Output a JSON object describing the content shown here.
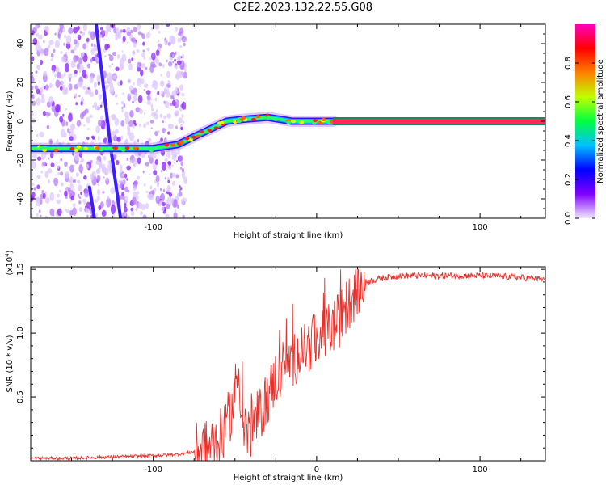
{
  "figure": {
    "title": "C2E2.2023.132.22.55.G08"
  },
  "chart_data": [
    {
      "type": "heatmap",
      "xlabel": "Height of straight line (km)",
      "ylabel": "Frequency (Hz)",
      "xlim": [
        -175,
        140
      ],
      "ylim": [
        -50,
        50
      ],
      "x_ticks": [
        -100,
        0,
        100
      ],
      "x_tick_labels": [
        "-100",
        "",
        "100"
      ],
      "y_ticks": [
        -40,
        -20,
        0,
        20,
        40
      ],
      "colorbar": {
        "label": "Normalized spectral amplitude",
        "range": [
          0,
          1
        ],
        "ticks": [
          0.0,
          0.2,
          0.4,
          0.6,
          0.8
        ],
        "tick_labels": [
          "0.0",
          "0.2",
          "0.4",
          "0.6",
          "0.8"
        ],
        "colormap": [
          "#f0e8ff",
          "#8000ff",
          "#0000ff",
          "#00c0ff",
          "#00ff40",
          "#c0ff00",
          "#ff8000",
          "#ff0000",
          "#ff00c0"
        ]
      },
      "main_track": {
        "points": [
          {
            "x": -175,
            "y": -14
          },
          {
            "x": -160,
            "y": -14
          },
          {
            "x": -140,
            "y": -14
          },
          {
            "x": -120,
            "y": -14
          },
          {
            "x": -100,
            "y": -14
          },
          {
            "x": -85,
            "y": -12
          },
          {
            "x": -75,
            "y": -8
          },
          {
            "x": -65,
            "y": -4
          },
          {
            "x": -55,
            "y": 0
          },
          {
            "x": -45,
            "y": 1
          },
          {
            "x": -30,
            "y": 2
          },
          {
            "x": -15,
            "y": 0
          },
          {
            "x": 0,
            "y": 0
          },
          {
            "x": 10,
            "y": 0
          }
        ],
        "constant_line": {
          "x_start": 10,
          "x_end": 140,
          "y": 0
        }
      },
      "interference_streaks": [
        {
          "x1": -135,
          "y1": 50,
          "x2": -126,
          "y2": -14
        },
        {
          "x1": -126,
          "y1": -14,
          "x2": -120,
          "y2": -50
        },
        {
          "x1": -139,
          "y1": -34,
          "x2": -136,
          "y2": -50
        }
      ],
      "noise_region": {
        "x_start": -175,
        "x_end": -80
      }
    },
    {
      "type": "line",
      "xlabel": "Height of straight line (km)",
      "ylabel": "SNR (10 * v/v)",
      "y_multiplier": "(x10",
      "y_multiplier_exp": "4",
      "y_multiplier_close": ")",
      "xlim": [
        -175,
        140
      ],
      "ylim": [
        0,
        1.52
      ],
      "x_ticks": [
        -100,
        0,
        100
      ],
      "x_tick_labels": [
        "-100",
        "0",
        "100"
      ],
      "y_ticks": [
        0.5,
        1.0,
        1.5
      ],
      "y_tick_labels": [
        "0.5",
        "1.0",
        "1.5"
      ],
      "series": [
        {
          "color": "#e8302a",
          "values": [
            [
              -175,
              0.02
            ],
            [
              -150,
              0.02
            ],
            [
              -125,
              0.03
            ],
            [
              -100,
              0.04
            ],
            [
              -85,
              0.05
            ],
            [
              -75,
              0.07
            ],
            [
              -65,
              0.12
            ],
            [
              -58,
              0.2
            ],
            [
              -52,
              0.4
            ],
            [
              -48,
              0.7
            ],
            [
              -45,
              0.35
            ],
            [
              -42,
              0.2
            ],
            [
              -38,
              0.3
            ],
            [
              -35,
              0.35
            ],
            [
              -30,
              0.5
            ],
            [
              -25,
              0.65
            ],
            [
              -20,
              0.75
            ],
            [
              -15,
              0.78
            ],
            [
              -10,
              0.85
            ],
            [
              -5,
              0.9
            ],
            [
              0,
              0.95
            ],
            [
              5,
              1.0
            ],
            [
              10,
              1.05
            ],
            [
              15,
              1.12
            ],
            [
              20,
              1.25
            ],
            [
              25,
              1.35
            ],
            [
              30,
              1.4
            ],
            [
              40,
              1.43
            ],
            [
              50,
              1.45
            ],
            [
              70,
              1.45
            ],
            [
              100,
              1.45
            ],
            [
              120,
              1.44
            ],
            [
              140,
              1.42
            ]
          ]
        }
      ]
    }
  ]
}
